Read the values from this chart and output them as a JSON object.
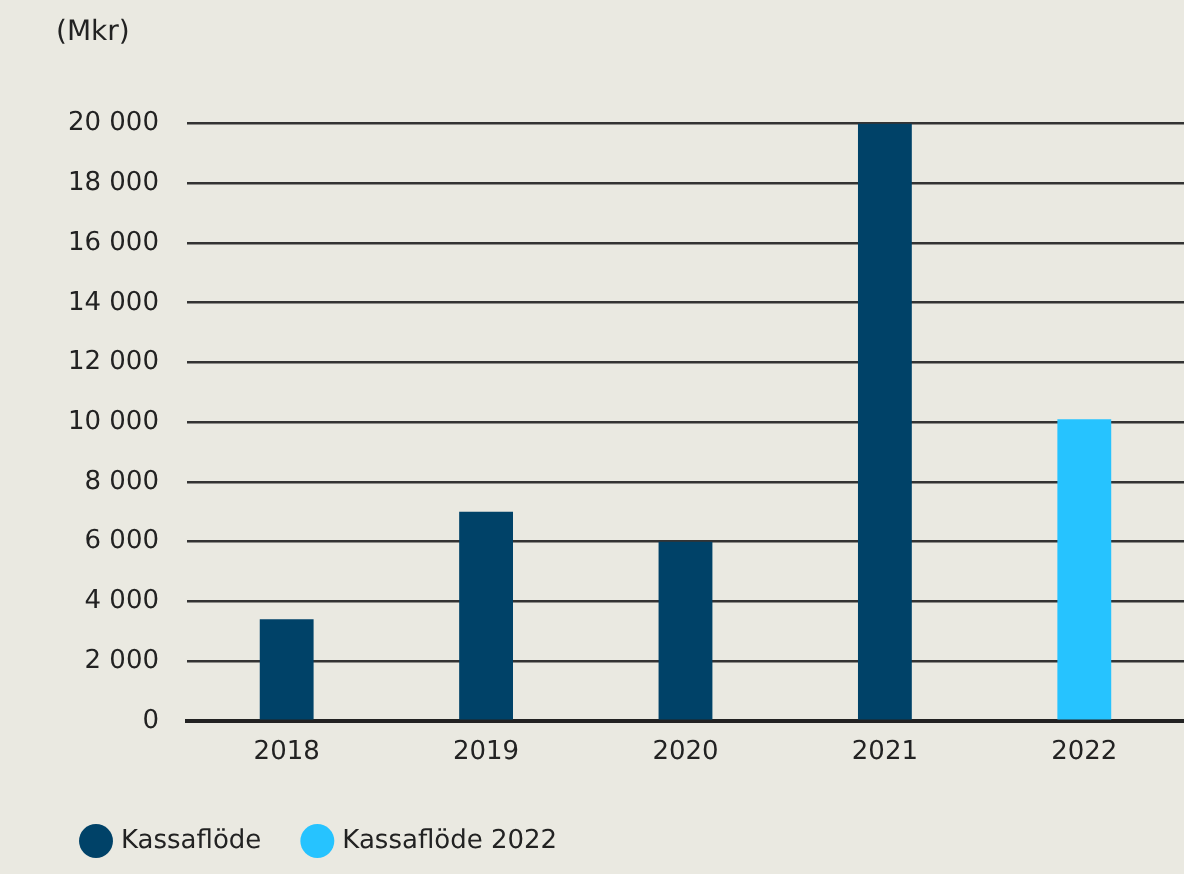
{
  "chart_data": {
    "type": "bar",
    "ylabel": "(Mkr)",
    "categories": [
      "2018",
      "2019",
      "2020",
      "2021",
      "2022"
    ],
    "series": [
      {
        "name": "Kassaflöde",
        "color": "#004268",
        "values": [
          3400,
          7000,
          6000,
          20000,
          null
        ]
      },
      {
        "name": "Kassaflöde 2022",
        "color": "#26c3ff",
        "values": [
          null,
          null,
          null,
          null,
          10100
        ]
      }
    ],
    "ylim": [
      0,
      20000
    ],
    "yticks": [
      0,
      {
        "value": 2000,
        "label": "2 000"
      },
      {
        "value": 4000,
        "label": "4 000"
      },
      {
        "value": 6000,
        "label": "6 000"
      },
      {
        "value": 8000,
        "label": "8 000"
      },
      {
        "value": 10000,
        "label": "10 000"
      },
      {
        "value": 12000,
        "label": "12 000"
      },
      {
        "value": 14000,
        "label": "14 000"
      },
      {
        "value": 16000,
        "label": "16 000"
      },
      {
        "value": 18000,
        "label": "18 000"
      },
      {
        "value": 20000,
        "label": "20 000"
      }
    ],
    "grid": "y",
    "legend": "bottom left"
  }
}
